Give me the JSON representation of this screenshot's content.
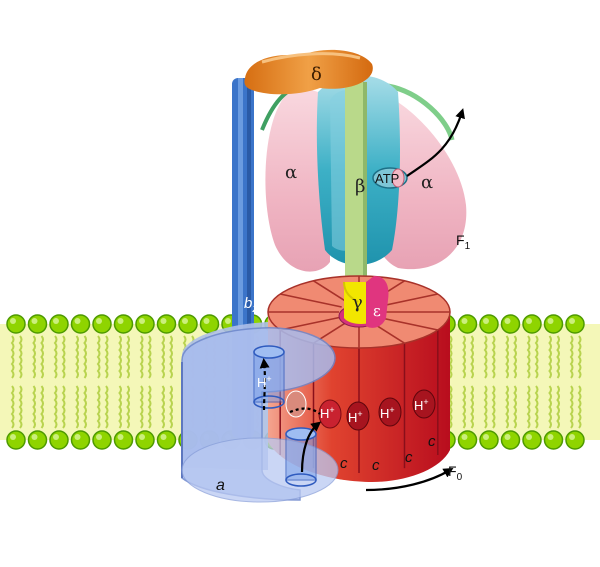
{
  "figure": {
    "subunits": {
      "delta": "δ",
      "alpha_left": "α",
      "alpha_right": "α",
      "beta": "β",
      "gamma": "γ",
      "epsilon": "ε",
      "b2": {
        "base": "b",
        "sub": "2"
      },
      "a": "a",
      "c": "c"
    },
    "atp": "ATP",
    "proton": {
      "base": "H",
      "sup": "+"
    },
    "domains": {
      "f1": {
        "base": "F",
        "sub": "1"
      },
      "f0": {
        "base": "F",
        "sub": "0"
      }
    }
  },
  "colors": {
    "background": "#ffffff",
    "membrane_yellow": "#f4f7b8",
    "lipid_head": "#8fd400",
    "lipid_head_dark": "#4e9a00",
    "lipid_tail": "#b8d34f",
    "delta": "#e88a2c",
    "b2": "#3b74c9",
    "a_subunit": "#8fa9e6",
    "alpha": "#f3b9c6",
    "beta": "#45b4c9",
    "gamma": "#f2e600",
    "epsilon": "#e0357f",
    "shaft": "#b9d98a",
    "c_ring_top": "#f08a72",
    "c_ring_side": "#d8252e",
    "arrow": "#000000"
  }
}
